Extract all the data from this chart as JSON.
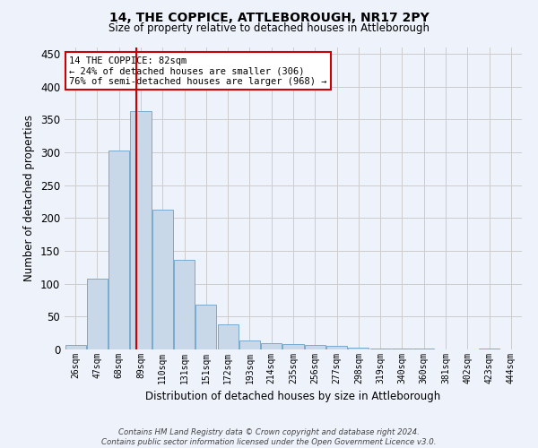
{
  "title": "14, THE COPPICE, ATTLEBOROUGH, NR17 2PY",
  "subtitle": "Size of property relative to detached houses in Attleborough",
  "xlabel": "Distribution of detached houses by size in Attleborough",
  "ylabel": "Number of detached properties",
  "categories": [
    "26sqm",
    "47sqm",
    "68sqm",
    "89sqm",
    "110sqm",
    "131sqm",
    "151sqm",
    "172sqm",
    "193sqm",
    "214sqm",
    "235sqm",
    "256sqm",
    "277sqm",
    "298sqm",
    "319sqm",
    "340sqm",
    "360sqm",
    "381sqm",
    "402sqm",
    "423sqm",
    "444sqm"
  ],
  "values": [
    7,
    108,
    302,
    362,
    213,
    136,
    68,
    38,
    13,
    10,
    8,
    7,
    5,
    3,
    2,
    1,
    1,
    0,
    0,
    2,
    0
  ],
  "bar_color": "#c8d8e8",
  "bar_edge_color": "#7aabcc",
  "grid_color": "#cccccc",
  "bg_color": "#eef2fb",
  "red_line_x": 2.78,
  "annotation_text": "14 THE COPPICE: 82sqm\n← 24% of detached houses are smaller (306)\n76% of semi-detached houses are larger (968) →",
  "annotation_box_color": "#ffffff",
  "annotation_box_edge": "#cc0000",
  "ylim": [
    0,
    460
  ],
  "yticks": [
    0,
    50,
    100,
    150,
    200,
    250,
    300,
    350,
    400,
    450
  ],
  "footer": "Contains HM Land Registry data © Crown copyright and database right 2024.\nContains public sector information licensed under the Open Government Licence v3.0."
}
